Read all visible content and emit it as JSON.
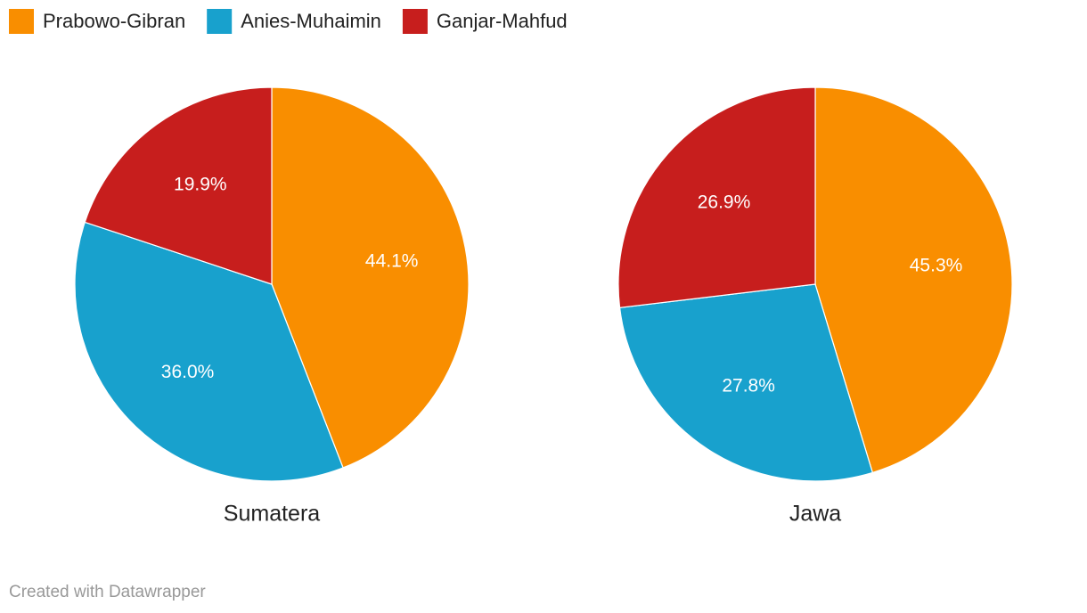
{
  "chart_data": [
    {
      "type": "pie",
      "title": "Sumatera",
      "categories": [
        "Prabowo-Gibran",
        "Anies-Muhaimin",
        "Ganjar-Mahfud"
      ],
      "values": [
        44.1,
        36.0,
        19.9
      ],
      "value_labels": [
        "44.1%",
        "36.0%",
        "19.9%"
      ],
      "colors": [
        "#f98e00",
        "#18a1cd",
        "#c71e1d"
      ]
    },
    {
      "type": "pie",
      "title": "Jawa",
      "categories": [
        "Prabowo-Gibran",
        "Anies-Muhaimin",
        "Ganjar-Mahfud"
      ],
      "values": [
        45.3,
        27.8,
        26.9
      ],
      "value_labels": [
        "45.3%",
        "27.8%",
        "26.9%"
      ],
      "colors": [
        "#f98e00",
        "#18a1cd",
        "#c71e1d"
      ]
    }
  ],
  "footer": "Created with Datawrapper"
}
